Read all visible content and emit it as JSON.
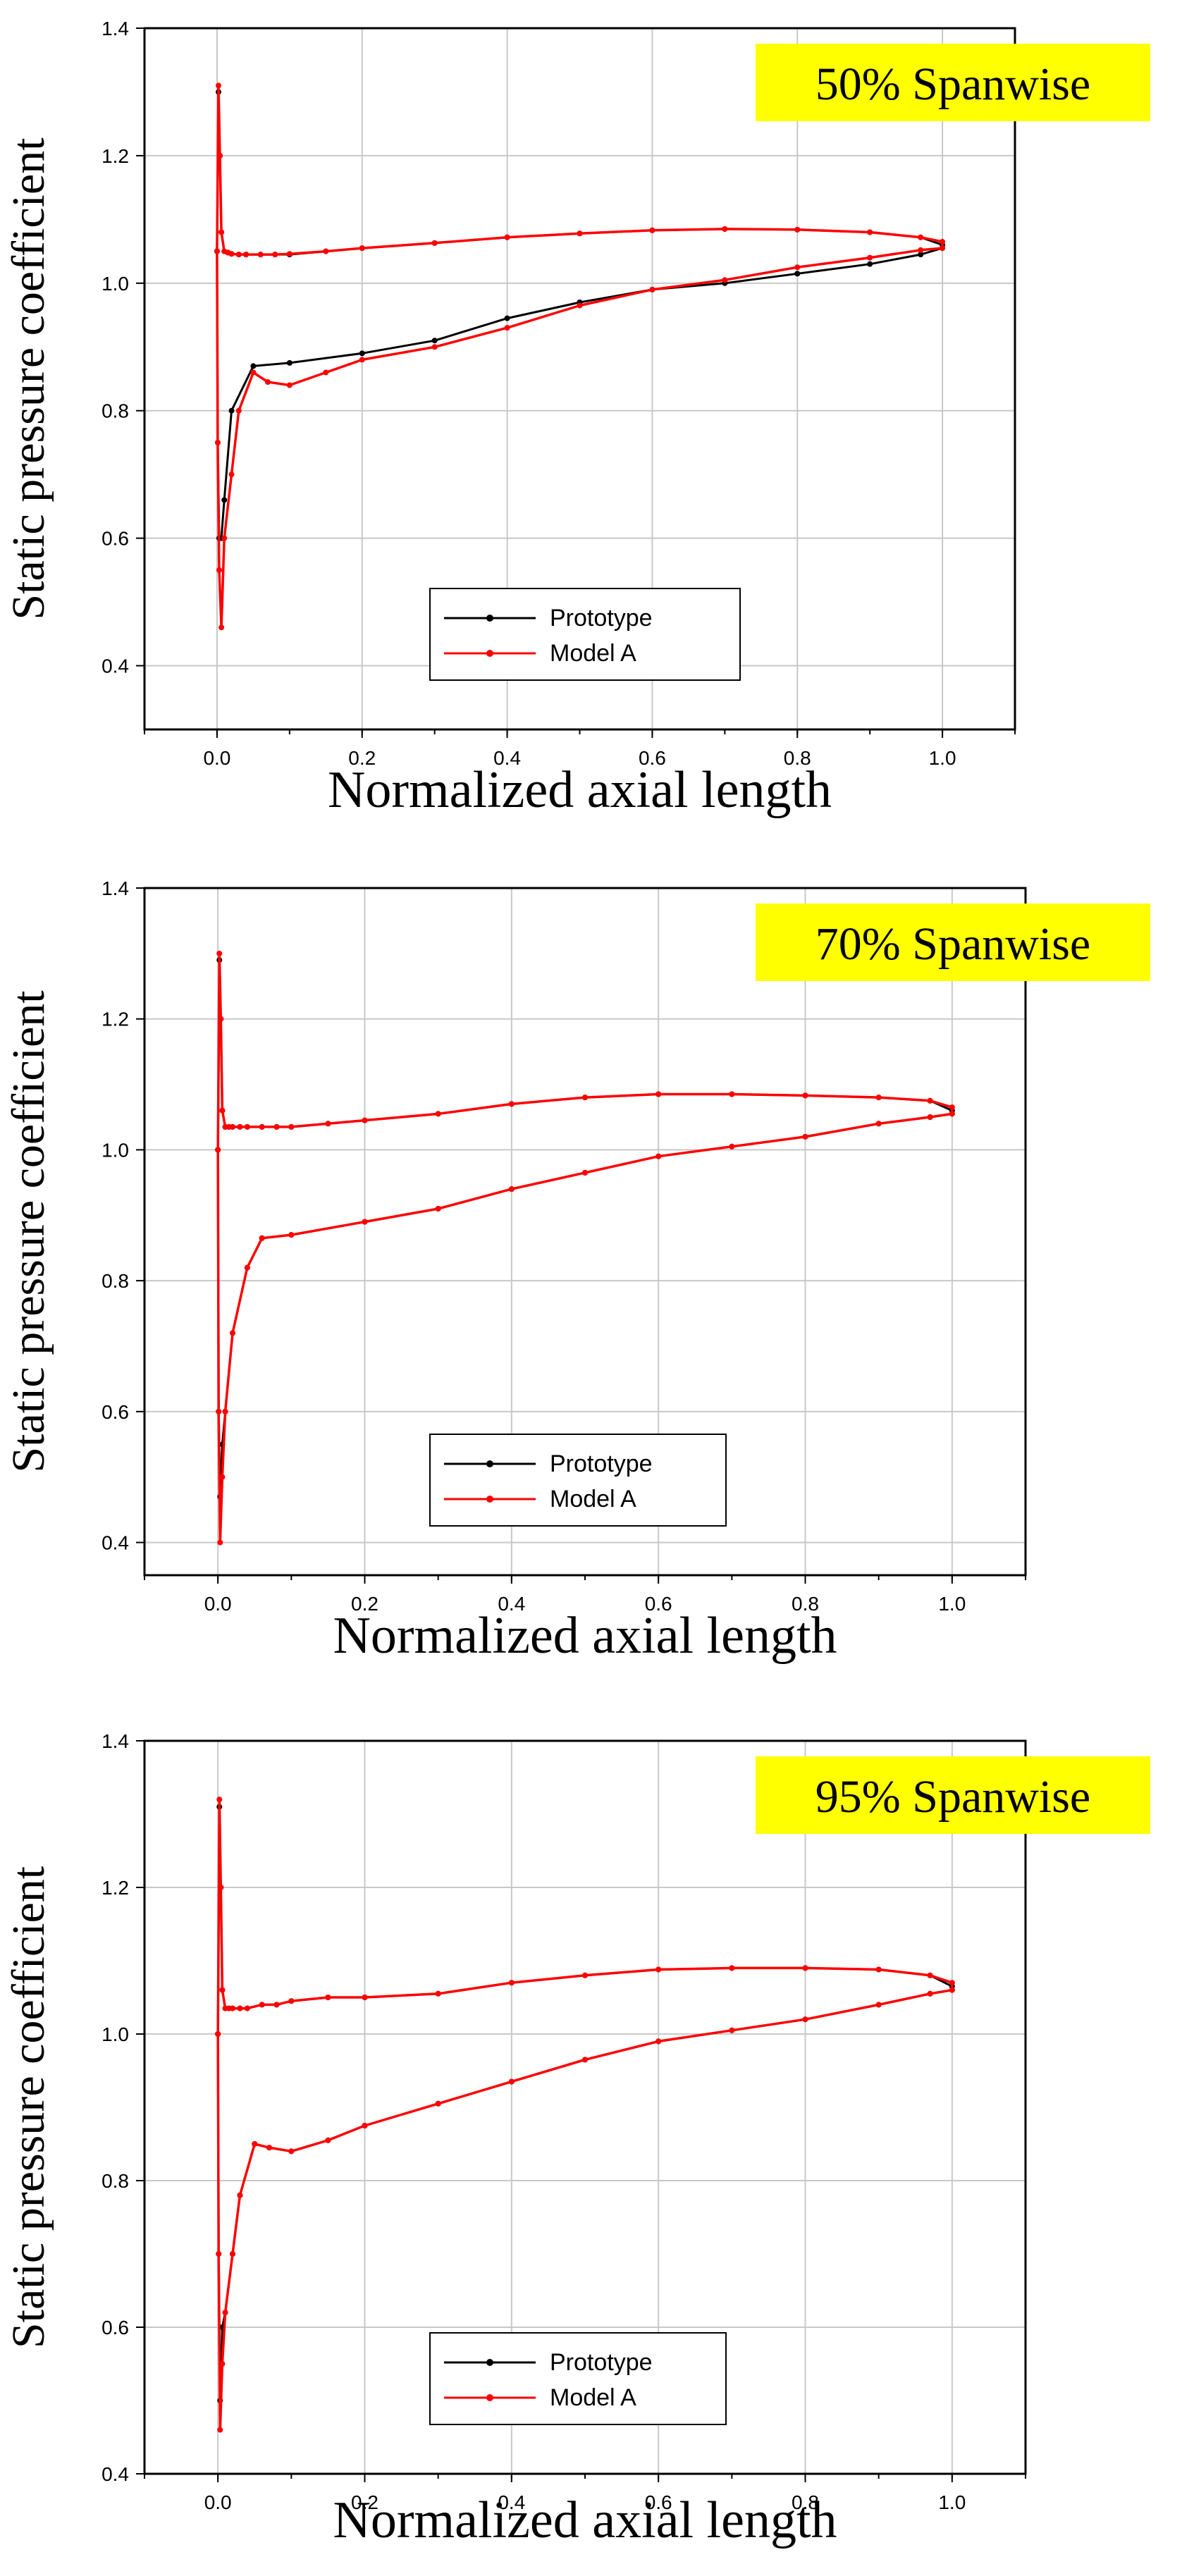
{
  "colors": {
    "prototype": "#000000",
    "model_a": "#ff0000",
    "badge": "#ffff00",
    "grid": "#c8c8c8",
    "axis": "#000000"
  },
  "chart_data": [
    {
      "type": "line",
      "badge": "50% Spanwise",
      "xlabel": "Normalized axial length",
      "ylabel": "Static pressure coefficient",
      "xlim": [
        -0.1,
        1.1
      ],
      "ylim": [
        0.3,
        1.4
      ],
      "xticks": [
        "0.0",
        "0.2",
        "0.4",
        "0.6",
        "0.8",
        "1.0"
      ],
      "yticks": [
        "0.4",
        "0.6",
        "0.8",
        "1.0",
        "1.2",
        "1.4"
      ],
      "grid": true,
      "legend_position": "bottom-left",
      "series": [
        {
          "name": "Prototype",
          "x": [
            0.0,
            0.002,
            0.004,
            0.006,
            0.01,
            0.015,
            0.02,
            0.03,
            0.04,
            0.06,
            0.08,
            0.1,
            0.15,
            0.2,
            0.3,
            0.4,
            0.5,
            0.6,
            0.7,
            0.8,
            0.9,
            0.97,
            1.0,
            1.0,
            0.97,
            0.9,
            0.8,
            0.7,
            0.6,
            0.5,
            0.4,
            0.3,
            0.2,
            0.1,
            0.05,
            0.02,
            0.01,
            0.006,
            0.003,
            0.001,
            0.0
          ],
          "y": [
            1.05,
            1.3,
            1.2,
            1.08,
            1.05,
            1.048,
            1.046,
            1.045,
            1.045,
            1.045,
            1.045,
            1.045,
            1.05,
            1.055,
            1.063,
            1.072,
            1.078,
            1.083,
            1.085,
            1.084,
            1.08,
            1.072,
            1.06,
            1.055,
            1.045,
            1.03,
            1.015,
            1.0,
            0.99,
            0.97,
            0.945,
            0.91,
            0.89,
            0.875,
            0.87,
            0.8,
            0.66,
            0.6,
            0.6,
            0.75,
            1.05
          ]
        },
        {
          "name": "Model A",
          "x": [
            0.0,
            0.002,
            0.004,
            0.006,
            0.01,
            0.015,
            0.02,
            0.03,
            0.04,
            0.06,
            0.08,
            0.1,
            0.15,
            0.2,
            0.3,
            0.4,
            0.5,
            0.6,
            0.7,
            0.8,
            0.9,
            0.97,
            1.0,
            1.0,
            0.97,
            0.9,
            0.8,
            0.7,
            0.6,
            0.5,
            0.4,
            0.3,
            0.2,
            0.15,
            0.1,
            0.07,
            0.05,
            0.03,
            0.02,
            0.01,
            0.006,
            0.003,
            0.001,
            0.0
          ],
          "y": [
            1.05,
            1.31,
            1.2,
            1.08,
            1.05,
            1.048,
            1.046,
            1.045,
            1.045,
            1.045,
            1.045,
            1.046,
            1.05,
            1.055,
            1.063,
            1.072,
            1.078,
            1.083,
            1.085,
            1.084,
            1.08,
            1.072,
            1.065,
            1.055,
            1.052,
            1.04,
            1.025,
            1.005,
            0.99,
            0.965,
            0.93,
            0.9,
            0.88,
            0.86,
            0.84,
            0.845,
            0.86,
            0.8,
            0.7,
            0.6,
            0.46,
            0.55,
            0.75,
            1.05
          ]
        }
      ]
    },
    {
      "type": "line",
      "badge": "70% Spanwise",
      "xlabel": "Normalized axial length",
      "ylabel": "Static pressure coefficient",
      "xlim": [
        -0.1,
        1.1
      ],
      "ylim": [
        0.35,
        1.4
      ],
      "xticks": [
        "0.0",
        "0.2",
        "0.4",
        "0.6",
        "0.8",
        "1.0"
      ],
      "yticks": [
        "0.4",
        "0.6",
        "0.8",
        "1.0",
        "1.2",
        "1.4"
      ],
      "grid": true,
      "legend_position": "bottom-left",
      "series": [
        {
          "name": "Prototype",
          "x": [
            0.0,
            0.002,
            0.004,
            0.006,
            0.01,
            0.015,
            0.02,
            0.03,
            0.04,
            0.06,
            0.08,
            0.1,
            0.15,
            0.2,
            0.3,
            0.4,
            0.5,
            0.6,
            0.7,
            0.8,
            0.9,
            0.97,
            1.0,
            1.0,
            0.97,
            0.9,
            0.8,
            0.7,
            0.6,
            0.5,
            0.4,
            0.3,
            0.2,
            0.1,
            0.06,
            0.04,
            0.02,
            0.01,
            0.006,
            0.003,
            0.001,
            0.0
          ],
          "y": [
            1.0,
            1.29,
            1.2,
            1.06,
            1.035,
            1.035,
            1.035,
            1.035,
            1.035,
            1.035,
            1.035,
            1.035,
            1.04,
            1.045,
            1.055,
            1.07,
            1.08,
            1.085,
            1.085,
            1.083,
            1.08,
            1.075,
            1.06,
            1.055,
            1.05,
            1.04,
            1.02,
            1.005,
            0.99,
            0.965,
            0.94,
            0.91,
            0.89,
            0.87,
            0.865,
            0.82,
            0.72,
            0.6,
            0.55,
            0.47,
            0.6,
            1.0
          ]
        },
        {
          "name": "Model A",
          "x": [
            0.0,
            0.002,
            0.004,
            0.006,
            0.01,
            0.015,
            0.02,
            0.03,
            0.04,
            0.06,
            0.08,
            0.1,
            0.15,
            0.2,
            0.3,
            0.4,
            0.5,
            0.6,
            0.7,
            0.8,
            0.9,
            0.97,
            1.0,
            1.0,
            0.97,
            0.9,
            0.8,
            0.7,
            0.6,
            0.5,
            0.4,
            0.3,
            0.2,
            0.1,
            0.06,
            0.04,
            0.02,
            0.01,
            0.006,
            0.003,
            0.001,
            0.0
          ],
          "y": [
            1.0,
            1.3,
            1.2,
            1.06,
            1.035,
            1.035,
            1.035,
            1.035,
            1.035,
            1.035,
            1.035,
            1.035,
            1.04,
            1.045,
            1.055,
            1.07,
            1.08,
            1.085,
            1.085,
            1.083,
            1.08,
            1.075,
            1.065,
            1.055,
            1.05,
            1.04,
            1.02,
            1.005,
            0.99,
            0.965,
            0.94,
            0.91,
            0.89,
            0.87,
            0.865,
            0.82,
            0.72,
            0.6,
            0.5,
            0.4,
            0.6,
            1.0
          ]
        }
      ]
    },
    {
      "type": "line",
      "badge": "95% Spanwise",
      "xlabel": "Normalized axial length",
      "ylabel": "Static pressure coefficient",
      "xlim": [
        -0.1,
        1.1
      ],
      "ylim": [
        0.4,
        1.4
      ],
      "xticks": [
        "0.0",
        "0.2",
        "0.4",
        "0.6",
        "0.8",
        "1.0"
      ],
      "yticks": [
        "0.4",
        "0.6",
        "0.8",
        "1.0",
        "1.2",
        "1.4"
      ],
      "grid": true,
      "legend_position": "bottom-left",
      "series": [
        {
          "name": "Prototype",
          "x": [
            0.0,
            0.002,
            0.004,
            0.006,
            0.01,
            0.015,
            0.02,
            0.03,
            0.04,
            0.06,
            0.08,
            0.1,
            0.15,
            0.2,
            0.3,
            0.4,
            0.5,
            0.6,
            0.7,
            0.8,
            0.9,
            0.97,
            1.0,
            1.0,
            0.97,
            0.9,
            0.8,
            0.7,
            0.6,
            0.5,
            0.4,
            0.3,
            0.2,
            0.15,
            0.1,
            0.07,
            0.05,
            0.03,
            0.02,
            0.01,
            0.006,
            0.003,
            0.001,
            0.0
          ],
          "y": [
            1.0,
            1.31,
            1.2,
            1.06,
            1.035,
            1.035,
            1.035,
            1.035,
            1.035,
            1.04,
            1.04,
            1.045,
            1.05,
            1.05,
            1.055,
            1.07,
            1.08,
            1.088,
            1.09,
            1.09,
            1.088,
            1.08,
            1.065,
            1.06,
            1.055,
            1.04,
            1.02,
            1.005,
            0.99,
            0.965,
            0.935,
            0.905,
            0.875,
            0.855,
            0.84,
            0.845,
            0.85,
            0.78,
            0.7,
            0.62,
            0.6,
            0.5,
            0.7,
            1.0
          ]
        },
        {
          "name": "Model A",
          "x": [
            0.0,
            0.002,
            0.004,
            0.006,
            0.01,
            0.015,
            0.02,
            0.03,
            0.04,
            0.06,
            0.08,
            0.1,
            0.15,
            0.2,
            0.3,
            0.4,
            0.5,
            0.6,
            0.7,
            0.8,
            0.9,
            0.97,
            1.0,
            1.0,
            0.97,
            0.9,
            0.8,
            0.7,
            0.6,
            0.5,
            0.4,
            0.3,
            0.2,
            0.15,
            0.1,
            0.07,
            0.05,
            0.03,
            0.02,
            0.01,
            0.006,
            0.003,
            0.001,
            0.0
          ],
          "y": [
            1.0,
            1.32,
            1.2,
            1.06,
            1.035,
            1.035,
            1.035,
            1.035,
            1.035,
            1.04,
            1.04,
            1.045,
            1.05,
            1.05,
            1.055,
            1.07,
            1.08,
            1.088,
            1.09,
            1.09,
            1.088,
            1.08,
            1.07,
            1.06,
            1.055,
            1.04,
            1.02,
            1.005,
            0.99,
            0.965,
            0.935,
            0.905,
            0.875,
            0.855,
            0.84,
            0.845,
            0.85,
            0.78,
            0.7,
            0.62,
            0.55,
            0.46,
            0.7,
            1.0
          ]
        }
      ]
    }
  ]
}
